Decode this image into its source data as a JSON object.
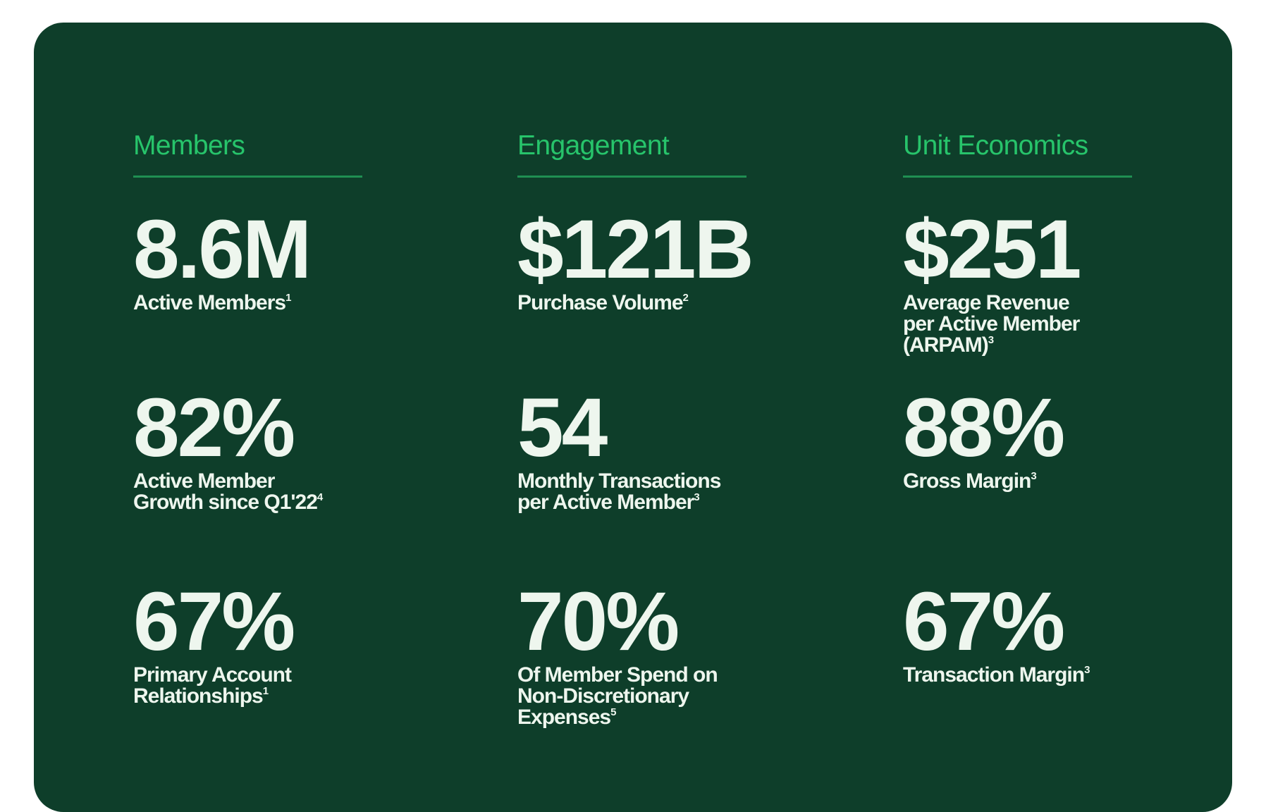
{
  "columns": [
    {
      "title": "Members",
      "metrics": [
        {
          "value": "8.6M",
          "label": "Active Members",
          "note": "1"
        },
        {
          "value": "82%",
          "label": "Active Member\nGrowth since Q1'22",
          "note": "4"
        },
        {
          "value": "67%",
          "label": "Primary Account\nRelationships",
          "note": "1"
        }
      ]
    },
    {
      "title": "Engagement",
      "metrics": [
        {
          "value": "$121B",
          "label": "Purchase Volume",
          "note": "2"
        },
        {
          "value": "54",
          "label": "Monthly Transactions\nper Active Member",
          "note": "3"
        },
        {
          "value": "70%",
          "label": "Of Member Spend on\nNon-Discretionary\nExpenses",
          "note": "5"
        }
      ]
    },
    {
      "title": "Unit Economics",
      "metrics": [
        {
          "value": "$251",
          "label": "Average Revenue\nper Active Member\n(ARPAM)",
          "note": "3"
        },
        {
          "value": "88%",
          "label": "Gross Margin",
          "note": "3"
        },
        {
          "value": "67%",
          "label": "Transaction Margin",
          "note": "3"
        }
      ]
    }
  ],
  "colors": {
    "card_background": "#0e3e2a",
    "accent": "#27c46b",
    "text": "#eef6ee"
  }
}
